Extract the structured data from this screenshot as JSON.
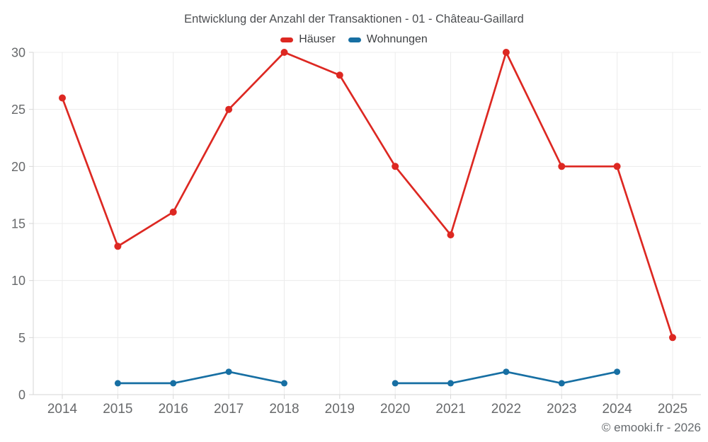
{
  "chart_data": {
    "type": "line",
    "title": "Entwicklung der Anzahl der Transaktionen - 01 - Château-Gaillard",
    "categories": [
      "2014",
      "2015",
      "2016",
      "2017",
      "2018",
      "2019",
      "2020",
      "2021",
      "2022",
      "2023",
      "2024",
      "2025"
    ],
    "series": [
      {
        "name": "Häuser",
        "color": "#dd2822",
        "values": [
          26,
          13,
          16,
          25,
          30,
          28,
          20,
          14,
          30,
          20,
          20,
          5
        ]
      },
      {
        "name": "Wohnungen",
        "color": "#176fa3",
        "values": [
          null,
          1,
          1,
          2,
          1,
          null,
          1,
          1,
          2,
          1,
          2,
          null
        ]
      }
    ],
    "xlabel": "",
    "ylabel": "",
    "ylim": [
      0,
      30
    ],
    "yticks": [
      0,
      5,
      10,
      15,
      20,
      25,
      30
    ],
    "grid": true,
    "legend_position": "top"
  },
  "footer": {
    "credit": "© emooki.fr - 2026"
  }
}
